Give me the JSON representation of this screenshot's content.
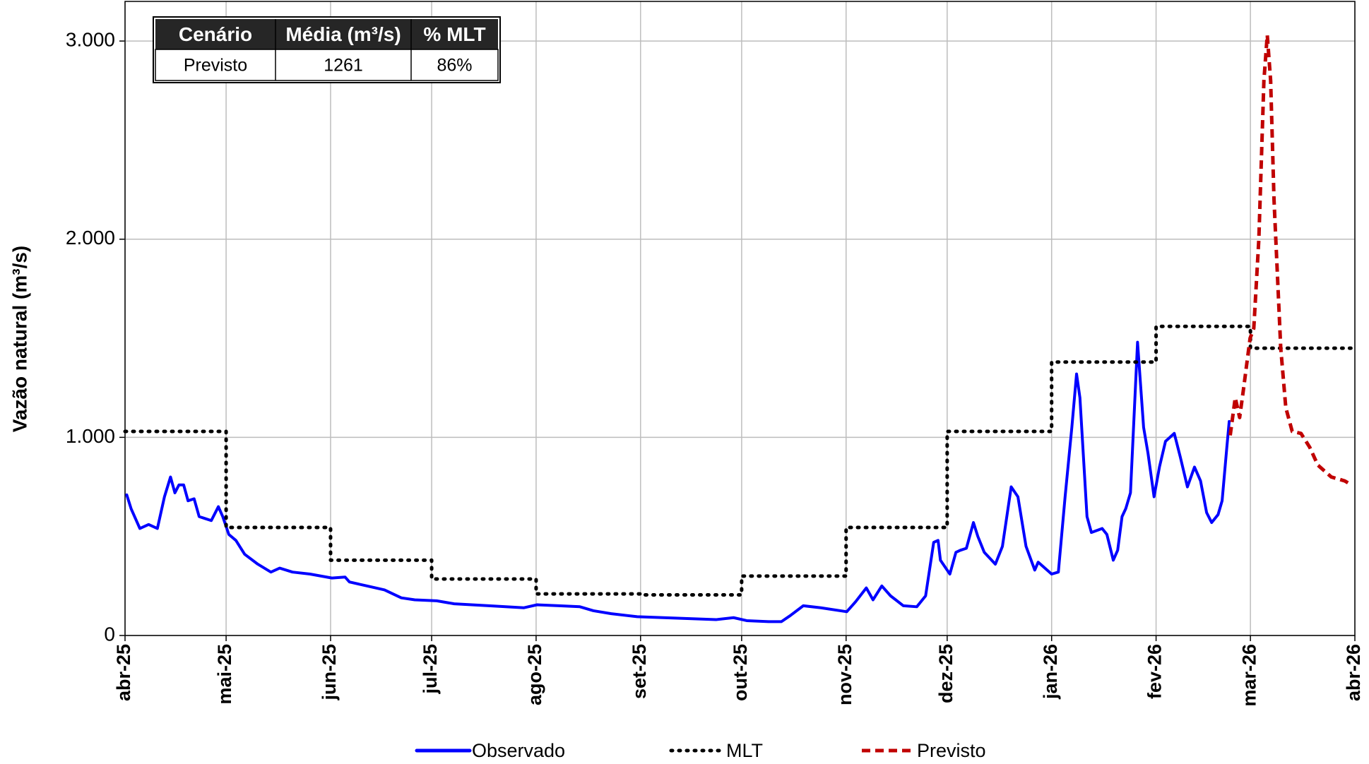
{
  "chart_data": {
    "type": "line",
    "ylabel": "Vazão natural (m³/s)",
    "grid": true,
    "legend": "bottom",
    "xlim": [
      0,
      365
    ],
    "ylim": [
      0,
      3200
    ],
    "xticks": [
      {
        "value": 0,
        "label": "abr-25"
      },
      {
        "value": 30,
        "label": "mai-25"
      },
      {
        "value": 61,
        "label": "jun-25"
      },
      {
        "value": 91,
        "label": "jul-25"
      },
      {
        "value": 122,
        "label": "ago-25"
      },
      {
        "value": 153,
        "label": "set-25"
      },
      {
        "value": 183,
        "label": "out-25"
      },
      {
        "value": 214,
        "label": "nov-25"
      },
      {
        "value": 244,
        "label": "dez-25"
      },
      {
        "value": 275,
        "label": "jan-26"
      },
      {
        "value": 306,
        "label": "fev-26"
      },
      {
        "value": 334,
        "label": "mar-26"
      },
      {
        "value": 365,
        "label": "abr-26"
      }
    ],
    "yticks": [
      0,
      {
        "value": 1000,
        "label": "1.000"
      },
      {
        "value": 2000,
        "label": "2.000"
      },
      {
        "value": 3000,
        "label": "3.000"
      }
    ],
    "table": {
      "columns": [
        "Cenário",
        "Média (m³/s)",
        "% MLT"
      ],
      "rows": [
        [
          "Previsto",
          "1261",
          "86%"
        ]
      ]
    },
    "series": [
      {
        "name": "Observado",
        "color": "#0000ff",
        "dash": "solid",
        "x": [
          0.5,
          1.8,
          4.4,
          7,
          9.6,
          11.7,
          13.5,
          14.8,
          16,
          17.4,
          18.7,
          20.5,
          22,
          23.8,
          25.6,
          27.7,
          29,
          30.8,
          32.9,
          35.5,
          39.4,
          43.3,
          45.9,
          49.7,
          54.9,
          61.4,
          65.3,
          66.6,
          71.8,
          77,
          82,
          86,
          92.5,
          97.7,
          108,
          118.4,
          122.3,
          128.8,
          135,
          139,
          144.3,
          152,
          159.8,
          167.6,
          175.4,
          180.6,
          184.5,
          191,
          194.8,
          197.4,
          201.3,
          206.5,
          214.2,
          216.8,
          220,
          222,
          224.6,
          227.2,
          231,
          235,
          237.6,
          240,
          241.3,
          242,
          244.8,
          246.6,
          247.9,
          249.7,
          251.8,
          253.1,
          255,
          258.3,
          260.4,
          263,
          265,
          267.4,
          270,
          271,
          275,
          277,
          279,
          281,
          282.4,
          283.4,
          285.5,
          286.8,
          290,
          291.4,
          293.3,
          294.6,
          295.9,
          297,
          298.4,
          300.5,
          302.3,
          303.6,
          305.4,
          307,
          308.8,
          311.4,
          313.2,
          315.3,
          317.4,
          319.2,
          321,
          322.5,
          324.4,
          325.6,
          327,
          327.7
        ],
        "values": [
          710,
          640,
          540,
          560,
          540,
          700,
          800,
          720,
          760,
          760,
          680,
          690,
          600,
          590,
          580,
          650,
          600,
          510,
          480,
          410,
          360,
          320,
          340,
          320,
          310,
          290,
          295,
          270,
          250,
          230,
          190,
          180,
          175,
          160,
          150,
          140,
          155,
          150,
          145,
          125,
          110,
          95,
          90,
          85,
          80,
          90,
          75,
          70,
          70,
          100,
          150,
          140,
          120,
          170,
          240,
          180,
          250,
          200,
          150,
          145,
          200,
          470,
          480,
          380,
          310,
          420,
          430,
          440,
          570,
          500,
          420,
          360,
          450,
          750,
          700,
          450,
          330,
          370,
          310,
          320,
          700,
          1050,
          1320,
          1200,
          600,
          520,
          540,
          510,
          380,
          430,
          600,
          640,
          720,
          1480,
          1050,
          920,
          700,
          850,
          980,
          1020,
          900,
          750,
          850,
          780,
          620,
          570,
          610,
          680,
          950,
          1080
        ]
      },
      {
        "name": "MLT",
        "color": "#000000",
        "dash": "dot",
        "x": [
          0,
          30,
          30,
          61,
          61,
          91,
          91,
          122,
          122,
          153,
          153,
          183,
          183,
          214,
          214,
          244,
          244,
          275,
          275,
          306,
          306,
          334,
          334,
          365
        ],
        "values": [
          1030,
          1030,
          545,
          545,
          380,
          380,
          285,
          285,
          210,
          210,
          205,
          205,
          300,
          300,
          545,
          545,
          1030,
          1030,
          1380,
          1380,
          1560,
          1560,
          1450,
          1450
        ]
      },
      {
        "name": "Previsto",
        "color": "#c00000",
        "dash": "dash",
        "x": [
          328,
          329.5,
          330.8,
          332,
          333.9,
          335,
          336.5,
          338,
          339,
          340,
          341,
          343,
          344.5,
          346.4,
          349,
          351.6,
          354,
          358,
          362,
          364
        ],
        "values": [
          1010,
          1200,
          1100,
          1250,
          1500,
          1550,
          2000,
          2800,
          3030,
          2800,
          2200,
          1450,
          1150,
          1030,
          1020,
          950,
          860,
          800,
          780,
          760
        ]
      }
    ]
  }
}
